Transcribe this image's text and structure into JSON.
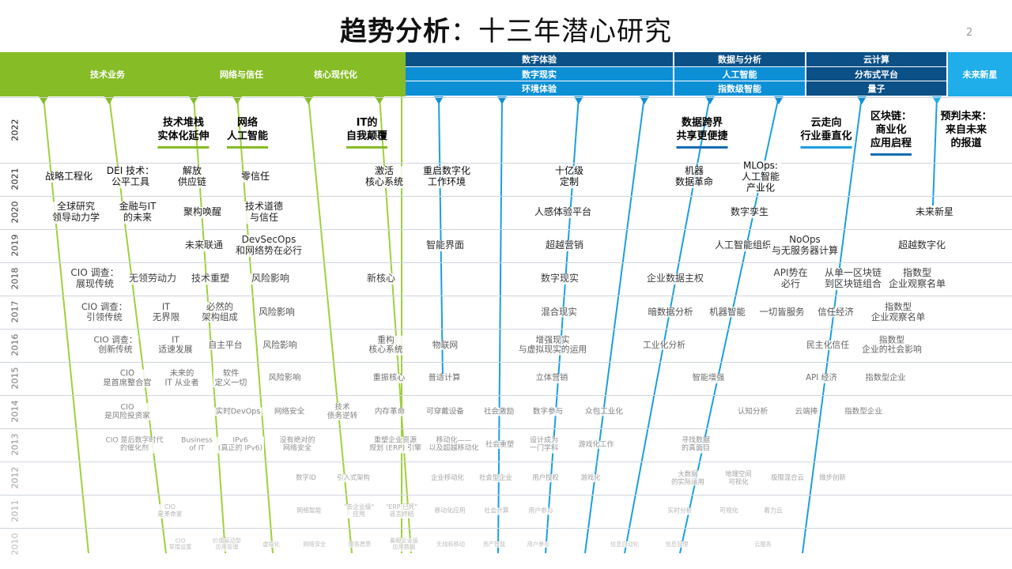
{
  "title": {
    "bold": "趋势分析",
    "rest": "：十三年潜心研究"
  },
  "page_number": "2",
  "bands": {
    "green": [
      "技术业务",
      "网络与信任",
      "核心现代化"
    ],
    "digital": [
      "数字体验",
      "数字现实",
      "环境体验"
    ],
    "data": [
      "数据与分析",
      "人工智能",
      "指数级智能"
    ],
    "cloud": [
      "云计算",
      "分布式平台",
      "量子"
    ],
    "future": "未来新星"
  },
  "years": [
    "2022",
    "2021",
    "2020",
    "2019",
    "2018",
    "2017",
    "2016",
    "2015",
    "2014",
    "2013",
    "2012",
    "2011",
    "2010"
  ],
  "headers": [
    "技术堆栈\n实体化延伸",
    "网络\n人工智能",
    "IT的\n自我颠覆",
    "数据跨界\n共享更便捷",
    "云走向\n行业垂直化",
    "区块链：\n商业化\n应用启程",
    "预判未来：\n来自未来\n的报道"
  ],
  "rows": [
    [
      "战略工程化",
      "DEI 技术：\n公平工具",
      "解放\n供应链",
      "零信任",
      "激活\n核心系统",
      "重启数字化\n工作环境",
      "十亿级\n定制",
      "机器\n数据革命",
      "MLOps:\n人工智能\n产业化"
    ],
    [
      "全球研究\n领导动力学",
      "金融与IT\n的未来",
      "聚构唤醒",
      "技术道德\n与信任",
      "人感体验平台",
      "数字孪生",
      "未来新星"
    ],
    [
      "未来联通",
      "DevSecOps\n和网络势在必行",
      "智能界面",
      "超越营销",
      "人工智能组织",
      "NoOps\n与无服务器计算",
      "超越数字化"
    ],
    [
      "CIO 调查：\n展现传统",
      "无领劳动力",
      "技术重塑",
      "风险影响",
      "新核心",
      "数字现实",
      "企业数据主权",
      "API势在\n必行",
      "从单一区块链\n到区块链组合",
      "指数型\n企业观察名单"
    ],
    [
      "CIO 调查：\n引领传统",
      "IT\n无界限",
      "必然的\n架构组成",
      "风险影响",
      "混合现实",
      "暗数据分析",
      "机器智能",
      "一切皆服务",
      "信任经济",
      "指数型\n企业观察名单"
    ],
    [
      "CIO 调查：\n创新传统",
      "IT\n适速发展",
      "自主平台",
      "风险影响",
      "重构\n核心系统",
      "物联网",
      "增强现实\n与虚拟现实的运用",
      "工业化分析",
      "民主化信任",
      "指数型\n企业的社会影响"
    ],
    [
      "CIO\n是首席整合官",
      "未来的\nIT 从业者",
      "软件\n定义一切",
      "风险影响",
      "重振核心",
      "普适计算",
      "立体营销",
      "智能增强",
      "API 经济",
      "指数型企业"
    ],
    [
      "CIO\n是风险投资家",
      "实时DevOps",
      "网络安全",
      "技术\n债务逆转",
      "内存革命",
      "可穿戴设备",
      "社会激励",
      "数字参与",
      "众包工业化",
      "认知分析",
      "云端捧",
      "指数型企业"
    ],
    [
      "CIO 是后数字时代\n的催化剂",
      "Business\nof IT",
      "IPv6\n(真正的 IPv6)",
      "没有绝对的\n网络安全",
      "重塑企业资源\n规划 (ERP) 引擎",
      "移动化——\n以及超越移动化",
      "社会重塑",
      "设计成为\n一门学科",
      "游戏化工作",
      "寻找数据\n的真面目"
    ],
    [
      "数字ID",
      "引入式架构",
      "企业移动化",
      "社会型企业",
      "用户授权",
      "游戏化",
      "大数据\n的实际运用",
      "地理空间\n可视化",
      "极限混合云",
      "微步创新"
    ],
    [
      "CIO\n是革命家",
      "网络智能",
      "\"去企业级\"\n应用",
      "\"ERP 已死\"\n谣言终结",
      "移动化应用",
      "社会计算",
      "用户参与",
      "实时分析",
      "可视化",
      "着力云"
    ],
    [
      "CIO\n举措设置",
      "价值驱动型\n应用管理",
      "虚拟化",
      "网络安全",
      "服务愿景",
      "着眼企业级\n应用数据",
      "无线和移动",
      "资产智能",
      "用户参与",
      "信息自动化",
      "信息管理",
      "云服务"
    ]
  ]
}
